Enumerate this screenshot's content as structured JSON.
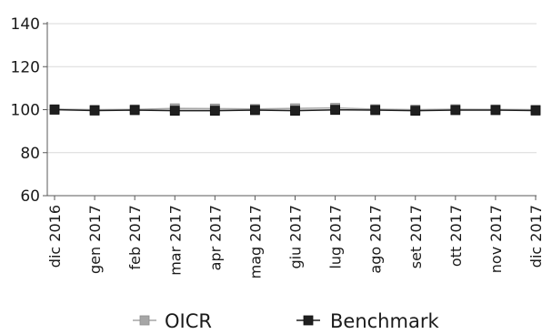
{
  "chart_data": {
    "type": "line",
    "title": "",
    "xlabel": "",
    "ylabel": "",
    "categories": [
      "dic 2016",
      "gen 2017",
      "feb 2017",
      "mar 2017",
      "apr 2017",
      "mag 2017",
      "giu 2017",
      "lug 2017",
      "ago 2017",
      "set 2017",
      "ott 2017",
      "nov 2017",
      "dic 2017"
    ],
    "ylim": [
      60,
      140
    ],
    "yticks": [
      60,
      80,
      100,
      120,
      140
    ],
    "grid": true,
    "legend_position": "bottom",
    "series": [
      {
        "name": "OICR",
        "color": "#a6a6a6",
        "marker": "square",
        "values": [
          100.2,
          100.0,
          100.1,
          100.6,
          100.5,
          100.3,
          100.6,
          100.8,
          100.2,
          100.0,
          100.2,
          100.1,
          100.0
        ]
      },
      {
        "name": "Benchmark",
        "color": "#1f1f1f",
        "marker": "square",
        "values": [
          100.0,
          99.6,
          99.8,
          99.5,
          99.5,
          99.8,
          99.5,
          99.9,
          99.8,
          99.5,
          99.8,
          99.8,
          99.6
        ]
      }
    ]
  }
}
